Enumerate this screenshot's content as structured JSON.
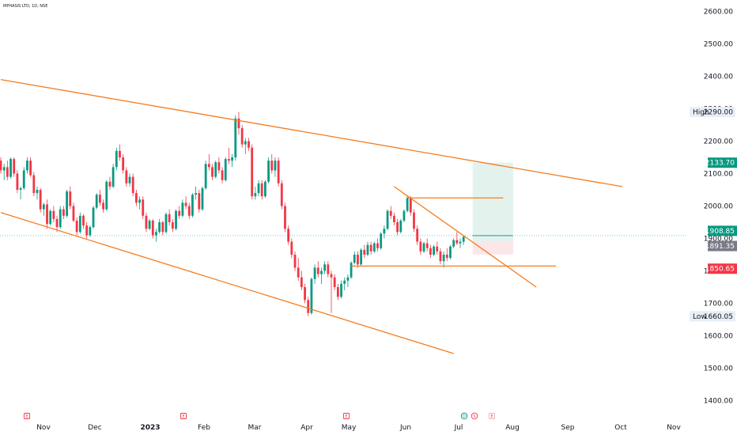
{
  "symbol_header": "MPHASIS LTD, 1D, NSE",
  "colors": {
    "up": "#089981",
    "down": "#f23645",
    "trendline": "#f57c1f",
    "current_line": "#26c6da",
    "target_zone": "#e4f2ee",
    "stop_zone": "#fde6e8",
    "axis_text": "#131722"
  },
  "price_labels": [
    {
      "key": "high",
      "label": "High",
      "value": "2290.00",
      "bg": "#e8eef5",
      "fg": "#131722"
    },
    {
      "key": "target",
      "label": "",
      "value": "2133.70",
      "bg": "#089981",
      "fg": "#ffffff"
    },
    {
      "key": "current",
      "label": "",
      "value": "1908.85",
      "bg": "#089981",
      "fg": "#ffffff"
    },
    {
      "key": "entry",
      "label": "",
      "value": "1891.35",
      "bg": "#787b86",
      "fg": "#ffffff"
    },
    {
      "key": "stop",
      "label": "",
      "value": "1850.65",
      "bg": "#f23645",
      "fg": "#ffffff"
    },
    {
      "key": "low",
      "label": "Low",
      "value": "1660.05",
      "bg": "#e8eef5",
      "fg": "#131722"
    }
  ],
  "event_icons": [
    {
      "type": "earnings",
      "symbol": "E",
      "month": "Oct-end"
    },
    {
      "type": "earnings",
      "symbol": "E",
      "month": "Jan-end"
    },
    {
      "type": "earnings",
      "symbol": "E",
      "month": "Apr-end"
    },
    {
      "type": "dividend",
      "symbol": "D",
      "month": "Jul-start"
    },
    {
      "type": "split",
      "symbol": "S",
      "month": "Jul-start"
    },
    {
      "type": "earnings",
      "symbol": "E",
      "month": "Jul-mid"
    }
  ],
  "chart_data": {
    "type": "candlestick",
    "title": "MPHASIS LTD, 1D, NSE",
    "y_axis": {
      "ticks": [
        1400,
        1500,
        1600,
        1700,
        1800,
        1900,
        2000,
        2100,
        2200,
        2300,
        2400,
        2500,
        2600
      ],
      "tick_labels": [
        "1400.00",
        "1500.00",
        "1600.00",
        "1700.00",
        "1800.00",
        "1900.00",
        "2000.00",
        "2100.00",
        "2200.00",
        "2300.00",
        "2400.00",
        "2500.00",
        "2600.00"
      ],
      "range": [
        1380,
        2630
      ]
    },
    "x_axis": {
      "labels": [
        "Nov",
        "Dec",
        "2023",
        "Feb",
        "Mar",
        "Apr",
        "May",
        "Jun",
        "Jul",
        "Aug",
        "Sep",
        "Oct",
        "Nov"
      ]
    },
    "ohlc": [
      [
        2140,
        2150,
        2100,
        2110
      ],
      [
        2110,
        2130,
        2080,
        2120
      ],
      [
        2120,
        2140,
        2080,
        2090
      ],
      [
        2090,
        2150,
        2085,
        2145
      ],
      [
        2145,
        2150,
        2090,
        2100
      ],
      [
        2100,
        2110,
        2040,
        2050
      ],
      [
        2050,
        2060,
        2020,
        2055
      ],
      [
        2055,
        2120,
        2050,
        2110
      ],
      [
        2110,
        2150,
        2100,
        2140
      ],
      [
        2140,
        2150,
        2090,
        2095
      ],
      [
        2095,
        2105,
        2030,
        2040
      ],
      [
        2040,
        2060,
        2020,
        2050
      ],
      [
        2050,
        2055,
        1980,
        1990
      ],
      [
        1990,
        2010,
        1970,
        2005
      ],
      [
        2005,
        2020,
        1930,
        1945
      ],
      [
        1945,
        1990,
        1940,
        1985
      ],
      [
        1985,
        2000,
        1950,
        1960
      ],
      [
        1960,
        1970,
        1920,
        1935
      ],
      [
        1935,
        2000,
        1930,
        1990
      ],
      [
        1990,
        2000,
        1960,
        1970
      ],
      [
        1970,
        2050,
        1965,
        2045
      ],
      [
        2045,
        2060,
        1990,
        2000
      ],
      [
        2000,
        2010,
        1950,
        1955
      ],
      [
        1955,
        1965,
        1910,
        1920
      ],
      [
        1920,
        1980,
        1915,
        1970
      ],
      [
        1970,
        1975,
        1930,
        1940
      ],
      [
        1940,
        1950,
        1900,
        1910
      ],
      [
        1910,
        1940,
        1905,
        1935
      ],
      [
        1935,
        2000,
        1930,
        1995
      ],
      [
        1995,
        2040,
        1990,
        2035
      ],
      [
        2035,
        2050,
        2000,
        2010
      ],
      [
        2010,
        2020,
        1980,
        1990
      ],
      [
        1990,
        2080,
        1985,
        2075
      ],
      [
        2075,
        2090,
        2050,
        2060
      ],
      [
        2060,
        2130,
        2055,
        2120
      ],
      [
        2120,
        2180,
        2110,
        2170
      ],
      [
        2170,
        2190,
        2140,
        2150
      ],
      [
        2150,
        2160,
        2100,
        2110
      ],
      [
        2110,
        2120,
        2060,
        2070
      ],
      [
        2070,
        2100,
        2060,
        2090
      ],
      [
        2090,
        2100,
        2030,
        2040
      ],
      [
        2040,
        2050,
        2000,
        2010
      ],
      [
        2010,
        2030,
        1990,
        2020
      ],
      [
        2020,
        2030,
        1960,
        1970
      ],
      [
        1970,
        1980,
        1920,
        1930
      ],
      [
        1930,
        1960,
        1925,
        1955
      ],
      [
        1955,
        1960,
        1900,
        1910
      ],
      [
        1910,
        1930,
        1890,
        1920
      ],
      [
        1920,
        1960,
        1915,
        1950
      ],
      [
        1950,
        1955,
        1910,
        1920
      ],
      [
        1920,
        1980,
        1915,
        1975
      ],
      [
        1975,
        1990,
        1940,
        1950
      ],
      [
        1950,
        1960,
        1920,
        1930
      ],
      [
        1930,
        1990,
        1925,
        1985
      ],
      [
        1985,
        2000,
        1960,
        1970
      ],
      [
        1970,
        2020,
        1965,
        2010
      ],
      [
        2010,
        2030,
        1990,
        2000
      ],
      [
        2000,
        2010,
        1960,
        1970
      ],
      [
        1970,
        2040,
        1965,
        2035
      ],
      [
        2035,
        2060,
        2020,
        2040
      ],
      [
        2040,
        2050,
        1980,
        1990
      ],
      [
        1990,
        2060,
        1985,
        2055
      ],
      [
        2055,
        2140,
        2050,
        2130
      ],
      [
        2130,
        2160,
        2110,
        2120
      ],
      [
        2120,
        2130,
        2080,
        2090
      ],
      [
        2090,
        2140,
        2085,
        2135
      ],
      [
        2135,
        2150,
        2100,
        2110
      ],
      [
        2110,
        2120,
        2070,
        2080
      ],
      [
        2080,
        2150,
        2075,
        2145
      ],
      [
        2145,
        2180,
        2130,
        2140
      ],
      [
        2140,
        2160,
        2120,
        2150
      ],
      [
        2150,
        2280,
        2140,
        2270
      ],
      [
        2270,
        2290,
        2220,
        2240
      ],
      [
        2240,
        2250,
        2180,
        2190
      ],
      [
        2190,
        2210,
        2160,
        2200
      ],
      [
        2200,
        2210,
        2170,
        2180
      ],
      [
        2180,
        2190,
        2020,
        2030
      ],
      [
        2030,
        2060,
        2020,
        2040
      ],
      [
        2040,
        2080,
        2030,
        2070
      ],
      [
        2070,
        2080,
        2020,
        2030
      ],
      [
        2030,
        2080,
        2025,
        2075
      ],
      [
        2075,
        2150,
        2070,
        2140
      ],
      [
        2140,
        2160,
        2100,
        2110
      ],
      [
        2110,
        2150,
        2090,
        2140
      ],
      [
        2140,
        2150,
        2060,
        2070
      ],
      [
        2070,
        2080,
        1990,
        2000
      ],
      [
        2000,
        2010,
        1920,
        1930
      ],
      [
        1930,
        1940,
        1880,
        1890
      ],
      [
        1890,
        1900,
        1840,
        1850
      ],
      [
        1850,
        1860,
        1800,
        1810
      ],
      [
        1810,
        1840,
        1770,
        1780
      ],
      [
        1780,
        1800,
        1740,
        1750
      ],
      [
        1750,
        1760,
        1700,
        1710
      ],
      [
        1710,
        1720,
        1660,
        1670
      ],
      [
        1670,
        1780,
        1665,
        1775
      ],
      [
        1775,
        1820,
        1760,
        1810
      ],
      [
        1810,
        1830,
        1780,
        1790
      ],
      [
        1790,
        1810,
        1760,
        1800
      ],
      [
        1800,
        1830,
        1790,
        1820
      ],
      [
        1820,
        1830,
        1780,
        1790
      ],
      [
        1790,
        1800,
        1670,
        1780
      ],
      [
        1780,
        1790,
        1740,
        1750
      ],
      [
        1750,
        1760,
        1710,
        1720
      ],
      [
        1720,
        1770,
        1715,
        1760
      ],
      [
        1760,
        1780,
        1740,
        1770
      ],
      [
        1770,
        1790,
        1750,
        1780
      ],
      [
        1780,
        1830,
        1775,
        1825
      ],
      [
        1825,
        1860,
        1820,
        1850
      ],
      [
        1850,
        1860,
        1810,
        1820
      ],
      [
        1820,
        1870,
        1815,
        1865
      ],
      [
        1865,
        1880,
        1840,
        1850
      ],
      [
        1850,
        1890,
        1845,
        1880
      ],
      [
        1880,
        1890,
        1850,
        1860
      ],
      [
        1860,
        1890,
        1855,
        1885
      ],
      [
        1885,
        1900,
        1860,
        1870
      ],
      [
        1870,
        1920,
        1865,
        1915
      ],
      [
        1915,
        1940,
        1900,
        1930
      ],
      [
        1930,
        1990,
        1925,
        1985
      ],
      [
        1985,
        2000,
        1960,
        1970
      ],
      [
        1970,
        1980,
        1940,
        1950
      ],
      [
        1950,
        1960,
        1910,
        1920
      ],
      [
        1920,
        1960,
        1915,
        1955
      ],
      [
        1955,
        1990,
        1950,
        1985
      ],
      [
        1985,
        2030,
        1980,
        2025
      ],
      [
        2025,
        2030,
        1970,
        1980
      ],
      [
        1980,
        1990,
        1920,
        1930
      ],
      [
        1930,
        1940,
        1880,
        1890
      ],
      [
        1890,
        1900,
        1850,
        1860
      ],
      [
        1860,
        1890,
        1855,
        1885
      ],
      [
        1885,
        1900,
        1860,
        1870
      ],
      [
        1870,
        1880,
        1840,
        1850
      ],
      [
        1850,
        1880,
        1845,
        1875
      ],
      [
        1875,
        1890,
        1850,
        1860
      ],
      [
        1860,
        1870,
        1820,
        1830
      ],
      [
        1830,
        1860,
        1810,
        1850
      ],
      [
        1850,
        1870,
        1830,
        1840
      ],
      [
        1840,
        1880,
        1835,
        1875
      ],
      [
        1875,
        1900,
        1870,
        1895
      ],
      [
        1895,
        1920,
        1880,
        1885
      ],
      [
        1885,
        1900,
        1870,
        1890
      ],
      [
        1890,
        1910,
        1880,
        1905
      ]
    ],
    "trendlines": [
      {
        "name": "upper channel",
        "from": {
          "bar": 0,
          "price": 2390
        },
        "to": {
          "bar": 188,
          "price": 2060
        }
      },
      {
        "name": "lower channel",
        "from": {
          "bar": 0,
          "price": 1980
        },
        "to": {
          "bar": 137,
          "price": 1545
        }
      },
      {
        "name": "descending resistance",
        "from": {
          "bar": 119,
          "price": 2060
        },
        "to": {
          "bar": 162,
          "price": 1750
        }
      },
      {
        "name": "horizontal resistance",
        "from": {
          "bar": 123,
          "price": 2025
        },
        "to": {
          "bar": 152,
          "price": 2025
        }
      },
      {
        "name": "horizontal support",
        "from": {
          "bar": 106,
          "price": 1815
        },
        "to": {
          "bar": 168,
          "price": 1815
        }
      }
    ],
    "position": {
      "entry": 1891.35,
      "target": 2133.7,
      "stop": 1850.65,
      "start_bar": 143,
      "end_bar": 155
    },
    "high": 2290.0,
    "low": 1660.05,
    "current": 1908.85,
    "grid": false,
    "legend": "none"
  }
}
